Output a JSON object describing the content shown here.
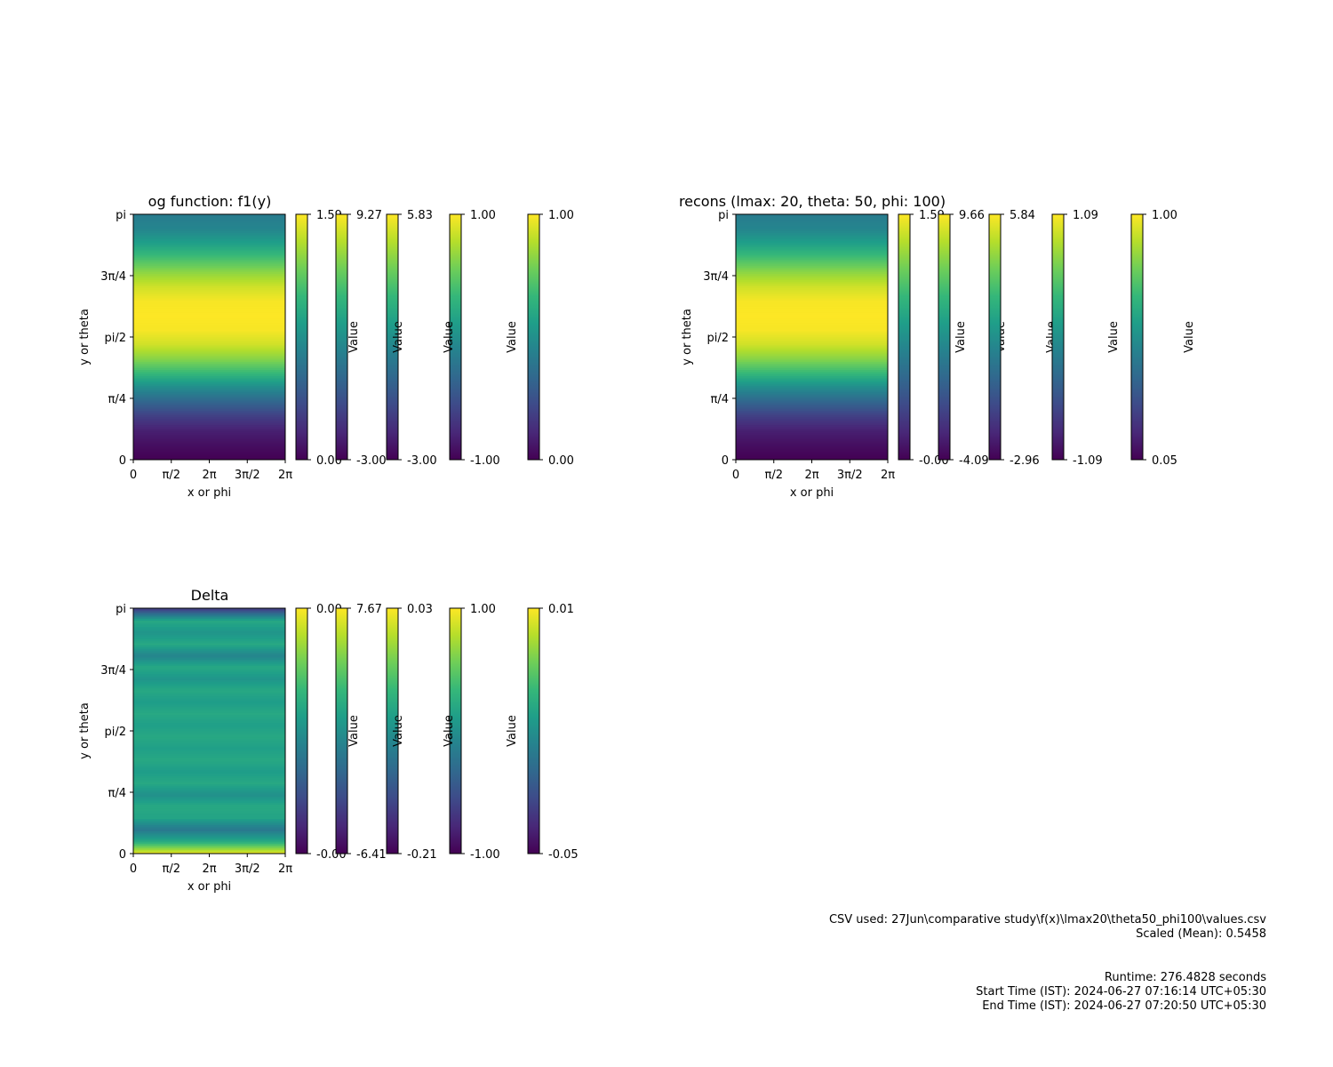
{
  "chart_data": [
    {
      "type": "heatmap",
      "title": "og function: f1(y)",
      "xlabel": "x or phi",
      "ylabel": "y or theta",
      "x_ticks": [
        "0",
        "π/2",
        "2π",
        "3π/2",
        "2π"
      ],
      "y_ticks": [
        "0",
        "π/4",
        "pi/2",
        "3π/4",
        "pi"
      ],
      "colormap": "viridis",
      "profile_along_y": [
        0.0,
        0.04,
        0.09,
        0.19,
        0.33,
        0.49,
        0.67,
        0.82,
        0.93,
        0.99,
        1.0,
        0.99,
        0.93,
        0.83,
        0.7,
        0.57,
        0.46,
        0.42
      ],
      "colorbars": [
        {
          "min": "0.00",
          "max": "1.59",
          "label": ""
        },
        {
          "min": "-3.00",
          "max": "9.27",
          "label": "Value"
        },
        {
          "min": "-3.00",
          "max": "5.83",
          "label": "Value"
        },
        {
          "min": "-1.00",
          "max": "1.00",
          "label": "Value"
        },
        {
          "min": "0.00",
          "max": "1.00",
          "label": "Value"
        }
      ]
    },
    {
      "type": "heatmap",
      "title": "recons (lmax: 20, theta: 50, phi: 100)",
      "xlabel": "x or phi",
      "ylabel": "y or theta",
      "x_ticks": [
        "0",
        "π/2",
        "2π",
        "3π/2",
        "2π"
      ],
      "y_ticks": [
        "0",
        "π/4",
        "pi/2",
        "3π/4",
        "pi"
      ],
      "colormap": "viridis",
      "profile_along_y": [
        0.0,
        0.04,
        0.09,
        0.19,
        0.33,
        0.49,
        0.67,
        0.82,
        0.93,
        0.99,
        1.0,
        0.99,
        0.93,
        0.83,
        0.7,
        0.57,
        0.46,
        0.42
      ],
      "colorbars": [
        {
          "min": "-0.00",
          "max": "1.59",
          "label": "Value"
        },
        {
          "min": "-4.09",
          "max": "9.66",
          "label": "Value"
        },
        {
          "min": "-2.96",
          "max": "5.84",
          "label": "Value"
        },
        {
          "min": "-1.09",
          "max": "1.09",
          "label": "Value"
        },
        {
          "min": "0.05",
          "max": "1.00",
          "label": "Value"
        }
      ]
    },
    {
      "type": "heatmap",
      "title": "Delta",
      "xlabel": "x or phi",
      "ylabel": "y or theta",
      "x_ticks": [
        "0",
        "π/2",
        "2π",
        "3π/2",
        "2π"
      ],
      "y_ticks": [
        "0",
        "π/4",
        "pi/2",
        "3π/4",
        "pi"
      ],
      "colormap": "viridis",
      "profile_along_y": [
        0.95,
        0.6,
        0.4,
        0.58,
        0.6,
        0.5,
        0.6,
        0.55,
        0.6,
        0.56,
        0.6,
        0.56,
        0.6,
        0.55,
        0.6,
        0.52,
        0.6,
        0.45,
        0.6,
        0.52,
        0.6,
        0.2
      ],
      "colorbars": [
        {
          "min": "-0.00",
          "max": "0.00",
          "label": ""
        },
        {
          "min": "-6.41",
          "max": "7.67",
          "label": "Value"
        },
        {
          "min": "-0.21",
          "max": "0.03",
          "label": "Value"
        },
        {
          "min": "-1.00",
          "max": "1.00",
          "label": "Value"
        },
        {
          "min": "-0.05",
          "max": "0.01",
          "label": "Value"
        }
      ]
    }
  ],
  "footer": {
    "csv_line": "CSV used: 27Jun\\comparative study\\f(x)\\lmax20\\theta50_phi100\\values.csv",
    "scaled_line": "Scaled (Mean): 0.5458",
    "runtime": "Runtime: 276.4828 seconds",
    "start_time": "Start Time (IST): 2024-06-27 07:16:14 UTC+05:30",
    "end_time": "End Time (IST): 2024-06-27 07:20:50 UTC+05:30"
  }
}
